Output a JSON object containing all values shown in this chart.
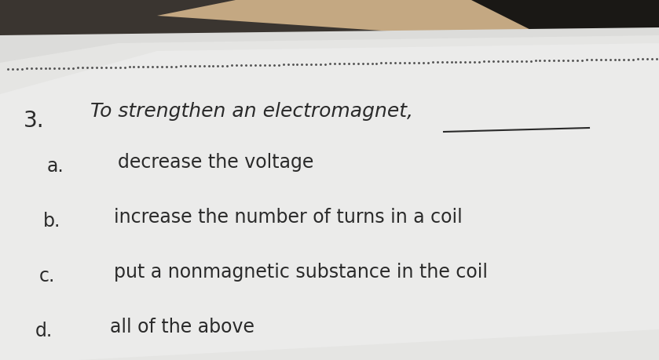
{
  "bg_top_color": "#1a1a1a",
  "bg_skin_color": "#c8a882",
  "paper_color": "#e8e8e6",
  "paper_shadow_color": "#c8c8c5",
  "question_number": "3.",
  "question_text": "To strengthen an electromagnet,",
  "underline": "___________",
  "options": [
    {
      "label": "a.",
      "text": "decrease the voltage"
    },
    {
      "label": "b.",
      "text": "increase the number of turns in a coil"
    },
    {
      "label": "c.",
      "text": "put a nonmagnetic substance in the coil"
    },
    {
      "label": "d.",
      "text": "all of the above"
    }
  ],
  "text_color": "#2a2a2a",
  "dot_color": "#555555",
  "title_fontsize": 18,
  "option_fontsize": 17,
  "label_fontsize": 17,
  "number_fontsize": 20
}
